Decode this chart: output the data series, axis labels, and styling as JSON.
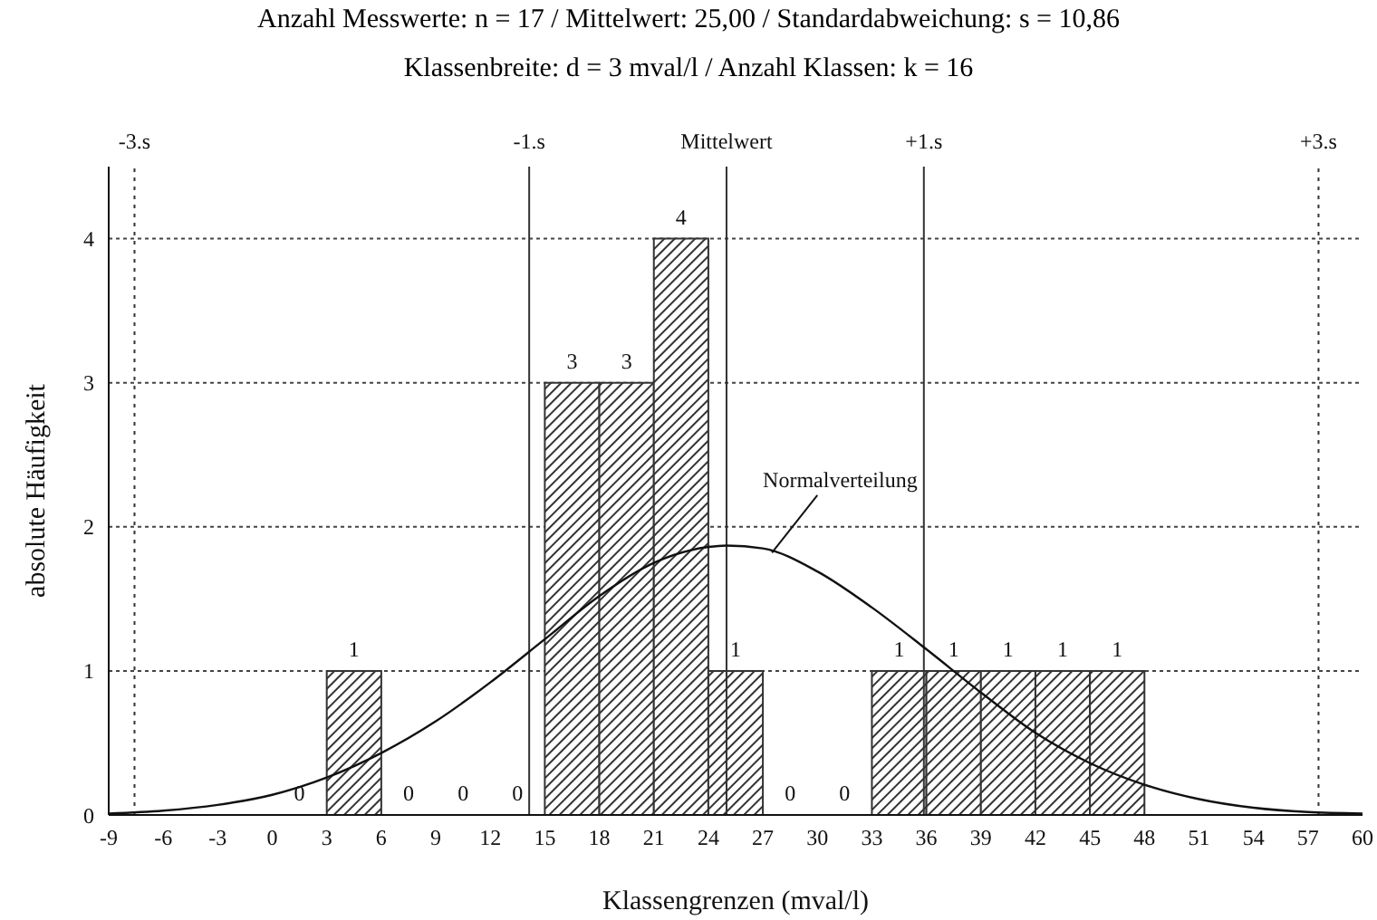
{
  "chart_data": {
    "type": "histogram",
    "title": "Anzahl Messwerte: n = 17 / Mittelwert: 25,00 / Standardabweichung: s = 10,86",
    "subtitle": "Klassenbreite: d = 3 mval/l / Anzahl Klassen: k = 16",
    "xlabel": "Klassengrenzen (mval/l)",
    "ylabel": "absolute Häufigkeit",
    "bins": [
      0,
      3,
      6,
      9,
      12,
      15,
      18,
      21,
      24,
      27,
      30,
      33,
      36,
      39,
      42,
      45,
      48
    ],
    "values": [
      0,
      1,
      0,
      0,
      0,
      3,
      3,
      4,
      1,
      0,
      0,
      1,
      1,
      1,
      1,
      1
    ],
    "color": "#333333",
    "value_labels": [
      "0",
      "1",
      "0",
      "0",
      "0",
      "3",
      "3",
      "4",
      "1",
      "0",
      "0",
      "1",
      "1",
      "1",
      "1",
      "1"
    ],
    "series": [
      {
        "type": "line",
        "name": "Normalverteilung",
        "color": "#111111",
        "x": [
          -9,
          -6,
          -3,
          0,
          3,
          6,
          9,
          12,
          15,
          18,
          21,
          24,
          25,
          27,
          30,
          33,
          36,
          39,
          42,
          45,
          48,
          51,
          54,
          57,
          60
        ],
        "values": [
          0.01,
          0.03,
          0.07,
          0.14,
          0.26,
          0.43,
          0.65,
          0.92,
          1.22,
          1.52,
          1.75,
          1.86,
          1.87,
          1.85,
          1.69,
          1.44,
          1.15,
          0.85,
          0.57,
          0.36,
          0.21,
          0.11,
          0.05,
          0.02,
          0.01
        ]
      }
    ],
    "xlim": [
      -9,
      60
    ],
    "xticks": [
      -9,
      -6,
      -3,
      0,
      3,
      6,
      9,
      12,
      15,
      18,
      21,
      24,
      27,
      30,
      33,
      36,
      39,
      42,
      45,
      48,
      51,
      54,
      57,
      60
    ],
    "ylim": [
      0,
      4.5
    ],
    "yticks": [
      0,
      1,
      2,
      3,
      4
    ],
    "grid": "y",
    "ref_lines": [
      {
        "axis": "x",
        "value": -7.58,
        "label": "-3.s",
        "line_style": "dotted"
      },
      {
        "axis": "x",
        "value": 14.14,
        "label": "-1.s",
        "line_style": "solid"
      },
      {
        "axis": "x",
        "value": 25,
        "label": "Mittelwert",
        "line_style": "solid"
      },
      {
        "axis": "x",
        "value": 35.86,
        "label": "+1.s",
        "line_style": "solid"
      },
      {
        "axis": "x",
        "value": 57.58,
        "label": "+3.s",
        "line_style": "dotted"
      }
    ]
  }
}
